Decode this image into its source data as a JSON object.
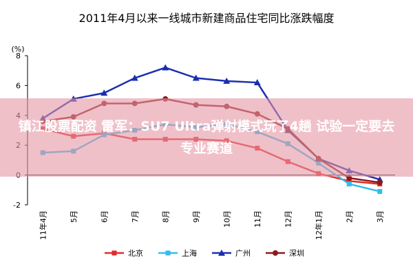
{
  "chart_data": {
    "type": "line",
    "title": "2011年4月以来一线城市新建商品住宅同比涨跌幅度",
    "y_label": "(%)",
    "categories": [
      "11年4月",
      "5月",
      "6月",
      "7月",
      "8月",
      "9月",
      "10月",
      "11月",
      "12月",
      "12年1月",
      "2月",
      "3月"
    ],
    "series": [
      {
        "name": "北京",
        "color": "#e02a2a",
        "marker": "square",
        "values": [
          3.1,
          2.6,
          2.8,
          2.4,
          2.4,
          2.4,
          2.3,
          1.8,
          0.9,
          0.1,
          -0.4,
          -0.6
        ]
      },
      {
        "name": "上海",
        "color": "#33bde8",
        "marker": "square",
        "values": [
          1.5,
          1.6,
          2.7,
          3.0,
          3.4,
          3.2,
          3.4,
          2.9,
          2.1,
          0.8,
          -0.6,
          -1.1
        ]
      },
      {
        "name": "广州",
        "color": "#1a2fb0",
        "marker": "triangle",
        "values": [
          3.8,
          5.1,
          5.5,
          6.5,
          7.2,
          6.5,
          6.3,
          6.2,
          3.0,
          1.1,
          0.3,
          -0.3
        ]
      },
      {
        "name": "深圳",
        "color": "#8b1a1a",
        "marker": "circle",
        "values": [
          3.6,
          3.9,
          4.8,
          4.8,
          5.1,
          4.7,
          4.6,
          4.1,
          3.1,
          1.1,
          -0.2,
          -0.5
        ]
      }
    ],
    "ylim": [
      -2,
      8
    ],
    "yticks": [
      -2,
      0,
      2,
      4,
      6,
      8
    ],
    "grid": false,
    "legend": "bottom"
  },
  "banner": "镇江股票配资 雷军：SU7 Ultra弹射模式玩了4趟 试验一定要去专业赛道"
}
